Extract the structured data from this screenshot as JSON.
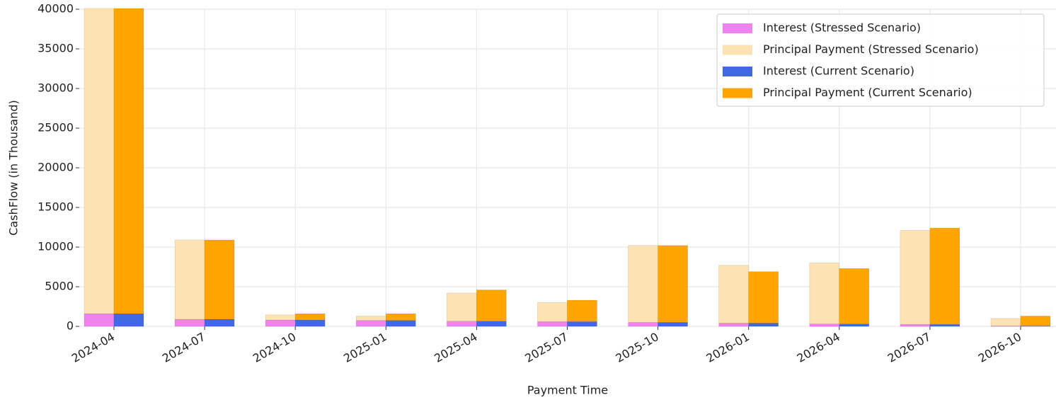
{
  "chart_data": {
    "type": "bar",
    "stacked": true,
    "x_label": "Payment Time",
    "y_label": "CashFlow (in Thousand)",
    "categories": [
      "2024-04",
      "2024-07",
      "2024-10",
      "2025-01",
      "2025-04",
      "2025-07",
      "2025-10",
      "2026-01",
      "2026-04",
      "2026-07",
      "2026-10"
    ],
    "series": [
      {
        "name": "Interest (Stressed Scenario)",
        "color": "#ee82ee",
        "group": "stressed",
        "values": [
          1600,
          900,
          800,
          750,
          650,
          600,
          500,
          400,
          300,
          250,
          50
        ]
      },
      {
        "name": "Principal Payment (Stressed Scenario)",
        "color": "#fde2b3",
        "group": "stressed",
        "values": [
          38500,
          10000,
          650,
          550,
          3550,
          2400,
          9700,
          7300,
          7700,
          11850,
          950
        ]
      },
      {
        "name": "Interest (Current Scenario)",
        "color": "#4169e1",
        "group": "current",
        "values": [
          1600,
          900,
          800,
          750,
          650,
          600,
          500,
          400,
          300,
          250,
          50
        ]
      },
      {
        "name": "Principal Payment (Current Scenario)",
        "color": "#ffa500",
        "group": "current",
        "values": [
          38500,
          10000,
          800,
          850,
          3950,
          2700,
          9700,
          6500,
          7000,
          12150,
          1250
        ]
      }
    ],
    "ylim": [
      0,
      40000
    ],
    "yticks": [
      0,
      5000,
      10000,
      15000,
      20000,
      25000,
      30000,
      35000,
      40000
    ],
    "grid": true,
    "legend": "upper right"
  }
}
